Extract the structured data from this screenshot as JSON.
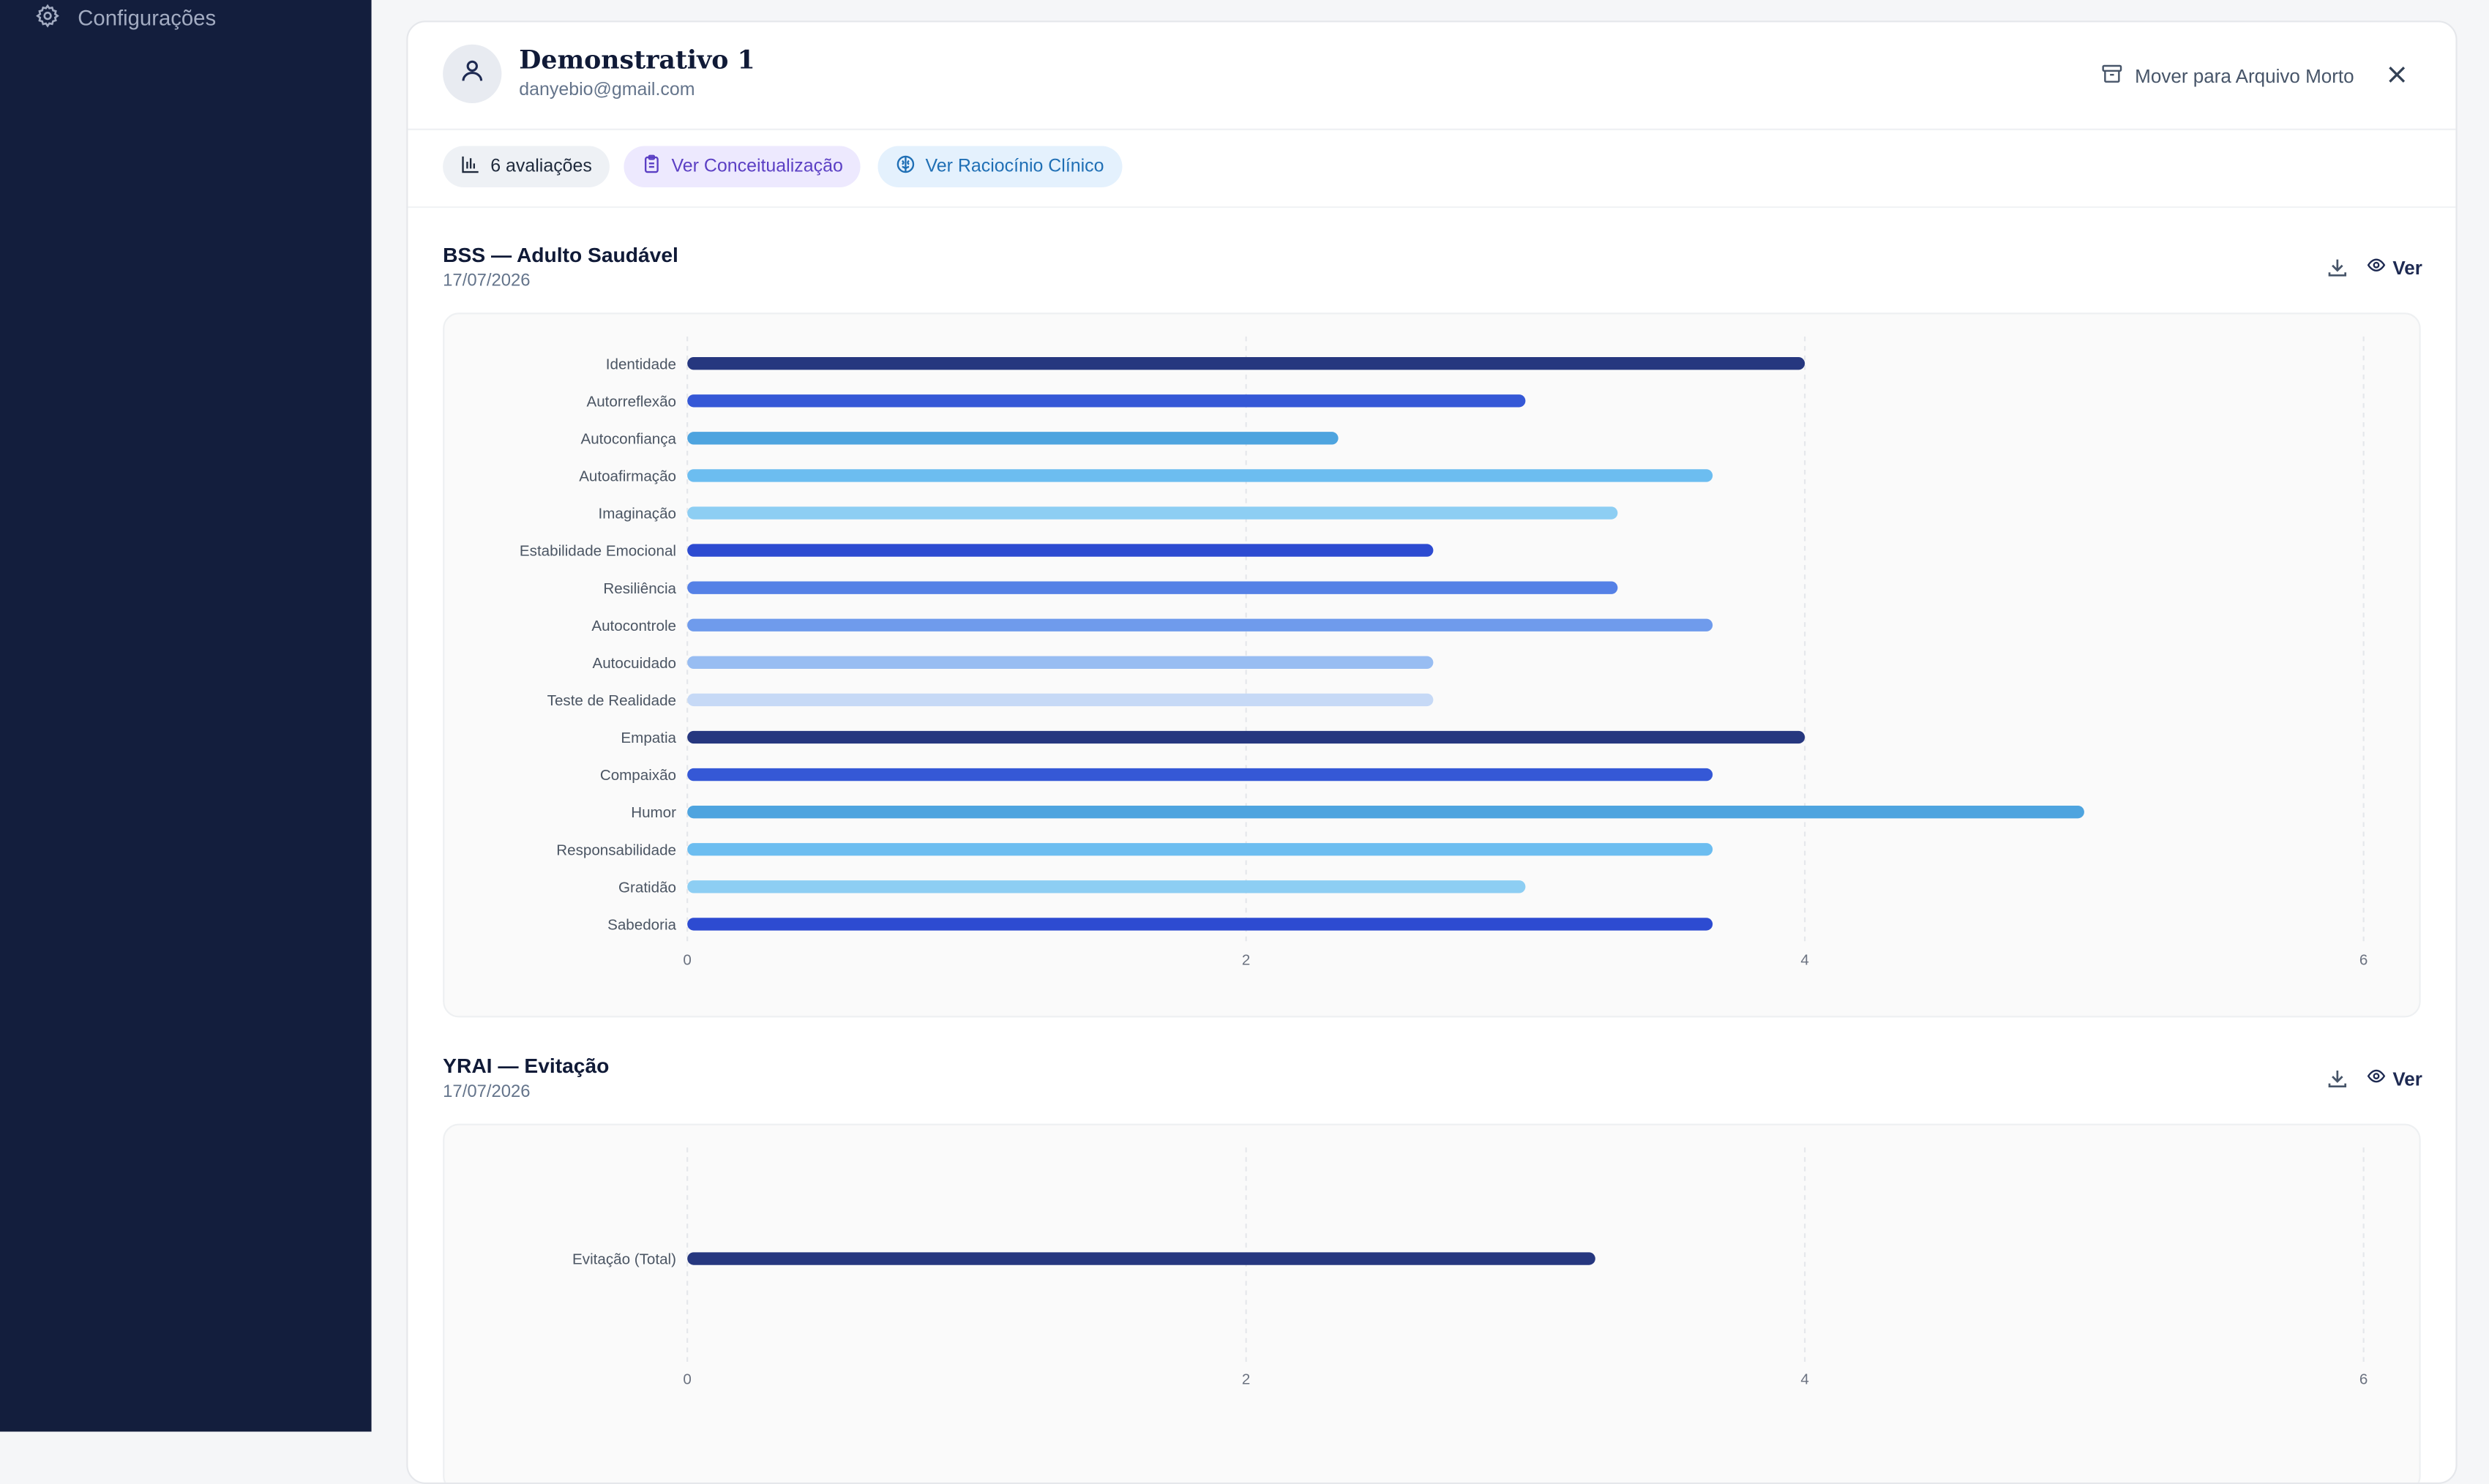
{
  "sidebar": {
    "settings_label": "Configurações",
    "settings_icon": "gear-icon"
  },
  "patient": {
    "name": "Demonstrativo 1",
    "email": "danyebio@gmail.com",
    "avatar_icon": "user-icon"
  },
  "header": {
    "archive_label": "Mover para Arquivo Morto"
  },
  "pills": {
    "assessments": "6 avaliações",
    "conceptualization": "Ver Conceitualização",
    "clinical_reasoning": "Ver Raciocínio Clínico"
  },
  "sections": [
    {
      "title": "BSS — Adulto Saudável",
      "date": "17/07/2026",
      "view_label": "Ver"
    },
    {
      "title": "YRAI — Evitação",
      "date": "17/07/2026",
      "view_label": "Ver"
    }
  ],
  "chart_data": [
    {
      "type": "bar",
      "orientation": "horizontal",
      "categories": [
        "Identidade",
        "Autorreflexão",
        "Autoconfiança",
        "Autoafirmação",
        "Imaginação",
        "Estabilidade Emocional",
        "Resiliência",
        "Autocontrole",
        "Autocuidado",
        "Teste de Realidade",
        "Empatia",
        "Compaixão",
        "Humor",
        "Responsabilidade",
        "Gratidão",
        "Sabedoria"
      ],
      "values": [
        4.0,
        3.0,
        2.33,
        3.67,
        3.33,
        2.67,
        3.33,
        3.67,
        2.67,
        2.67,
        4.0,
        3.67,
        5.0,
        3.67,
        3.0,
        3.67
      ],
      "colors": [
        "#26377f",
        "#3558d6",
        "#4ea4df",
        "#6cbdf0",
        "#8dcef3",
        "#2d4bd1",
        "#5581e6",
        "#6f9bec",
        "#98bdf2",
        "#c6d9f6",
        "#26377f",
        "#3558d6",
        "#4ea4df",
        "#6cbdf0",
        "#8dcef3",
        "#2d4bd1"
      ],
      "xlim": [
        0,
        6
      ],
      "xticks": [
        0,
        2,
        4,
        6
      ],
      "grid": true
    },
    {
      "type": "bar",
      "orientation": "horizontal",
      "categories": [
        "Evitação (Total)"
      ],
      "values": [
        3.25
      ],
      "colors": [
        "#26377f"
      ],
      "xlim": [
        0,
        6
      ],
      "xticks": [
        0,
        2,
        4,
        6
      ],
      "grid": true
    }
  ]
}
